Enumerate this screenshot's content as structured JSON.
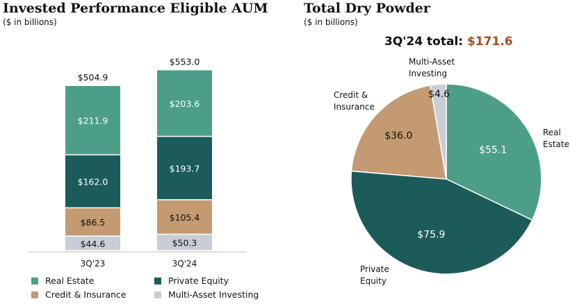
{
  "colors": {
    "Real Estate": "#4d9e88",
    "Private Equity": "#1b5c5a",
    "Credit & Insurance": "#c49a72",
    "Multi-Asset Investing": "#c9ced6",
    "accent": "#a84a1e"
  },
  "chart_data": [
    {
      "type": "bar",
      "stacked": true,
      "title": "Invested Performance Eligible AUM",
      "subtitle": "($ in billions)",
      "categories": [
        "3Q'23",
        "3Q'24"
      ],
      "totals": [
        "$504.9",
        "$553.0"
      ],
      "totals_values": [
        504.9,
        553.0
      ],
      "series": [
        {
          "name": "Multi-Asset Investing",
          "values": [
            44.6,
            50.3
          ]
        },
        {
          "name": "Credit & Insurance",
          "values": [
            86.5,
            105.4
          ]
        },
        {
          "name": "Private Equity",
          "values": [
            162.0,
            193.7
          ]
        },
        {
          "name": "Real Estate",
          "values": [
            211.9,
            203.6
          ]
        }
      ],
      "legend": [
        "Real Estate",
        "Private Equity",
        "Credit & Insurance",
        "Multi-Asset Investing"
      ],
      "legend_placement": "bottom",
      "grid": false
    },
    {
      "type": "pie",
      "title": "Total Dry Powder",
      "subtitle": "($ in billions)",
      "total_label": "3Q'24 total:",
      "total_value": "$171.6",
      "slices": [
        {
          "name": "Real Estate",
          "label": "Real Estate",
          "value": 55.1
        },
        {
          "name": "Private Equity",
          "label": "Private Equity",
          "value": 75.9
        },
        {
          "name": "Credit & Insurance",
          "label": "Credit & Insurance",
          "value": 36.0
        },
        {
          "name": "Multi-Asset Investing",
          "label": "Multi-Asset Investing",
          "value": 4.6
        }
      ]
    }
  ]
}
